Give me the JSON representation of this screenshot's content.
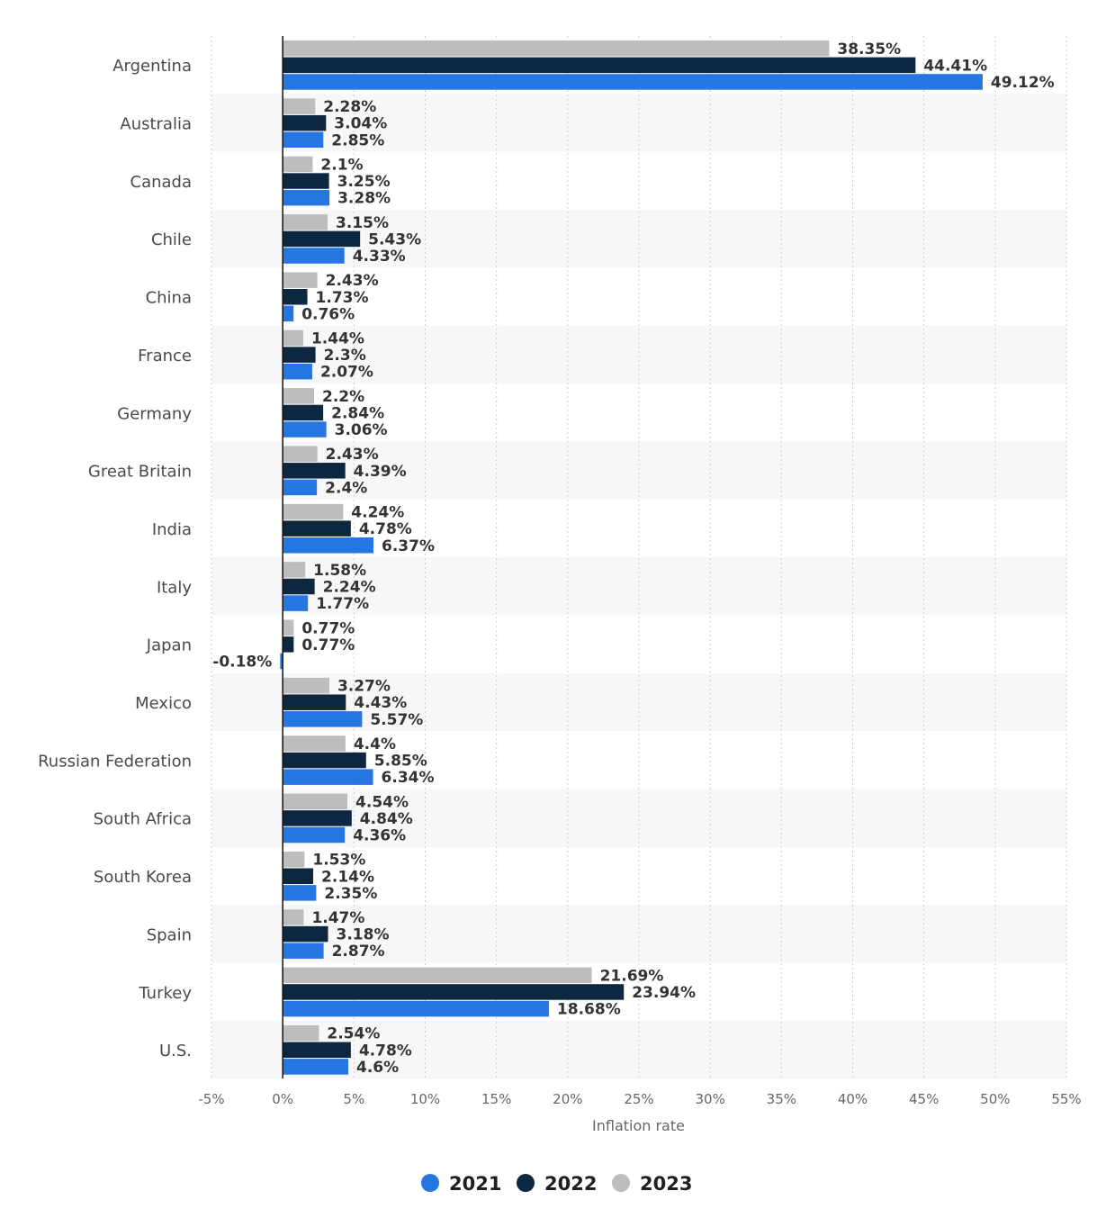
{
  "chart_data": {
    "type": "bar",
    "orientation": "horizontal",
    "categories": [
      "Argentina",
      "Australia",
      "Canada",
      "Chile",
      "China",
      "France",
      "Germany",
      "Great Britain",
      "India",
      "Italy",
      "Japan",
      "Mexico",
      "Russian Federation",
      "South Africa",
      "South Korea",
      "Spain",
      "Turkey",
      "U.S."
    ],
    "series": [
      {
        "name": "2023",
        "color": "#bdbdbd",
        "values": [
          38.35,
          2.28,
          2.1,
          3.15,
          2.43,
          1.44,
          2.2,
          2.43,
          4.24,
          1.58,
          0.77,
          3.27,
          4.4,
          4.54,
          1.53,
          1.47,
          21.69,
          2.54
        ],
        "labels": [
          "38.35%",
          "2.28%",
          "2.1%",
          "3.15%",
          "2.43%",
          "1.44%",
          "2.2%",
          "2.43%",
          "4.24%",
          "1.58%",
          "0.77%",
          "3.27%",
          "4.4%",
          "4.54%",
          "1.53%",
          "1.47%",
          "21.69%",
          "2.54%"
        ]
      },
      {
        "name": "2022",
        "color": "#0d2741",
        "values": [
          44.41,
          3.04,
          3.25,
          5.43,
          1.73,
          2.3,
          2.84,
          4.39,
          4.78,
          2.24,
          0.77,
          4.43,
          5.85,
          4.84,
          2.14,
          3.18,
          23.94,
          4.78
        ],
        "labels": [
          "44.41%",
          "3.04%",
          "3.25%",
          "5.43%",
          "1.73%",
          "2.3%",
          "2.84%",
          "4.39%",
          "4.78%",
          "2.24%",
          "0.77%",
          "4.43%",
          "5.85%",
          "4.84%",
          "2.14%",
          "3.18%",
          "23.94%",
          "4.78%"
        ]
      },
      {
        "name": "2021",
        "color": "#2676e1",
        "values": [
          49.12,
          2.85,
          3.28,
          4.33,
          0.76,
          2.07,
          3.06,
          2.4,
          6.37,
          1.77,
          -0.18,
          5.57,
          6.34,
          4.36,
          2.35,
          2.87,
          18.68,
          4.6
        ],
        "labels": [
          "49.12%",
          "2.85%",
          "3.28%",
          "4.33%",
          "0.76%",
          "2.07%",
          "3.06%",
          "2.4%",
          "6.37%",
          "1.77%",
          "-0.18%",
          "5.57%",
          "6.34%",
          "4.36%",
          "2.35%",
          "2.87%",
          "18.68%",
          "4.6%"
        ]
      }
    ],
    "xlabel": "Inflation rate",
    "xlim": [
      -5,
      55
    ],
    "xticks": [
      -5,
      0,
      5,
      10,
      15,
      20,
      25,
      30,
      35,
      40,
      45,
      50,
      55
    ],
    "xtick_labels": [
      "-5%",
      "0%",
      "5%",
      "10%",
      "15%",
      "20%",
      "25%",
      "30%",
      "35%",
      "40%",
      "45%",
      "50%",
      "55%"
    ],
    "grid": true,
    "legend_position": "bottom-center",
    "legend": [
      {
        "name": "2021",
        "color": "#2676e1"
      },
      {
        "name": "2022",
        "color": "#0d2741"
      },
      {
        "name": "2023",
        "color": "#bdbdbd"
      }
    ]
  }
}
